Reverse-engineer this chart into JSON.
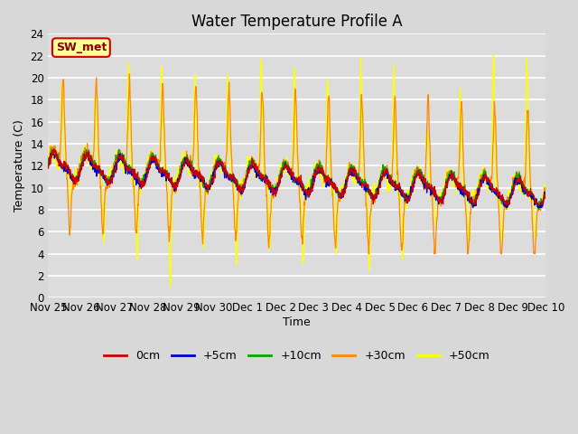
{
  "title": "Water Temperature Profile A",
  "xlabel": "Time",
  "ylabel": "Temperature (C)",
  "ylim": [
    0,
    24
  ],
  "yticks": [
    0,
    2,
    4,
    6,
    8,
    10,
    12,
    14,
    16,
    18,
    20,
    22,
    24
  ],
  "xtick_labels": [
    "Nov 25",
    "Nov 26",
    "Nov 27",
    "Nov 28",
    "Nov 29",
    "Nov 30",
    "Dec 1",
    "Dec 2",
    "Dec 3",
    "Dec 4",
    "Dec 5",
    "Dec 6",
    "Dec 7",
    "Dec 8",
    "Dec 9",
    "Dec 10"
  ],
  "legend_labels": [
    "0cm",
    "+5cm",
    "+10cm",
    "+30cm",
    "+50cm"
  ],
  "legend_colors": [
    "#cc0000",
    "#0000cc",
    "#00aa00",
    "#ff8800",
    "#ffff00"
  ],
  "annotation_text": "SW_met",
  "annotation_bg": "#ffff99",
  "annotation_border": "#cc0000",
  "fig_bg": "#d8d8d8",
  "plot_bg": "#dcdcdc",
  "grid_color": "#ffffff",
  "title_fontsize": 12,
  "axis_fontsize": 9,
  "tick_fontsize": 8.5,
  "linewidth": 0.9
}
